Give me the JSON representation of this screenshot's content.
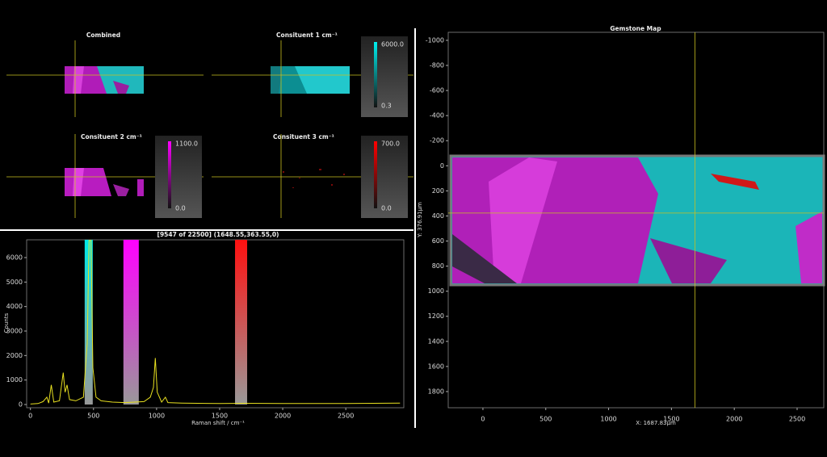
{
  "panels": [
    {
      "title": "Combined"
    },
    {
      "title": "Consituent 1 cm⁻¹",
      "colorbar": {
        "max": "6000.0",
        "min": "0.3"
      }
    },
    {
      "title": "Consituent 2 cm⁻¹",
      "colorbar": {
        "max": "1100.0",
        "min": "0.0"
      }
    },
    {
      "title": "Consituent 3 cm⁻¹",
      "colorbar": {
        "max": "700.0",
        "min": "0.0"
      }
    }
  ],
  "chart_data": [
    {
      "type": "line",
      "title": "[9547 of 22500] (1648.55,363.55,0)",
      "xlabel": "Raman shift / cm⁻¹",
      "ylabel": "Counts",
      "x": [
        0,
        60,
        100,
        130,
        145,
        165,
        185,
        230,
        260,
        275,
        290,
        310,
        360,
        420,
        450,
        465,
        480,
        495,
        520,
        560,
        650,
        750,
        900,
        950,
        975,
        990,
        1005,
        1040,
        1070,
        1090,
        1200,
        1500,
        1700,
        2000,
        2500,
        2930
      ],
      "series": [
        {
          "color": "#e8e020",
          "values": [
            20,
            40,
            120,
            300,
            60,
            800,
            100,
            150,
            1300,
            500,
            800,
            200,
            150,
            300,
            2500,
            6700,
            6700,
            1500,
            300,
            150,
            100,
            80,
            120,
            300,
            700,
            1900,
            500,
            100,
            300,
            80,
            60,
            40,
            50,
            40,
            40,
            60
          ]
        }
      ],
      "bands": [
        {
          "color": "#00e8e8",
          "range": [
            430,
            494
          ]
        },
        {
          "color": "#ff00ff",
          "range": [
            737,
            859
          ]
        },
        {
          "color": "#ff1010",
          "range": [
            1622,
            1718
          ]
        }
      ],
      "xlim": [
        -30,
        2960
      ],
      "ylim": [
        -132,
        6726
      ],
      "xticks": [
        0,
        500,
        1000,
        1500,
        2000,
        2500
      ],
      "yticks": [
        0,
        1000,
        2000,
        3000,
        4000,
        5000,
        6000
      ]
    },
    {
      "type": "image",
      "title": "Gemstone Map",
      "xlabel": "X: 1687.83µm",
      "ylabel": "Y: 376.91µm",
      "crosshair": [
        1687.83,
        376.91
      ],
      "xlim": [
        -276,
        2712
      ],
      "ylim": [
        -1064,
        1929
      ],
      "y_inverted": true,
      "xticks": [
        0,
        500,
        1000,
        1500,
        2000,
        2500
      ],
      "yticks": [
        -1000,
        -800,
        -600,
        -400,
        -200,
        0,
        200,
        400,
        600,
        800,
        1000,
        1200,
        1400,
        1600,
        1800
      ]
    }
  ]
}
